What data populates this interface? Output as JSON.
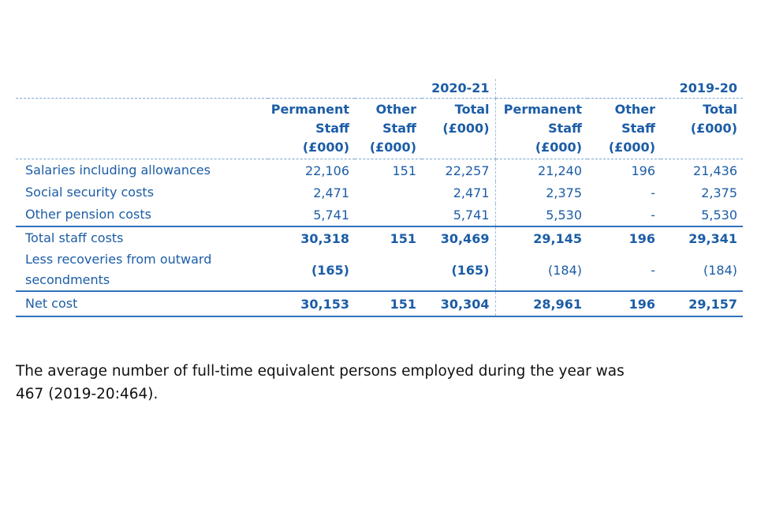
{
  "table": {
    "groups": [
      "2020-21",
      "2019-20"
    ],
    "columns": [
      [
        "Permanent",
        "Staff",
        "(£000)"
      ],
      [
        "Other",
        "Staff",
        "(£000)"
      ],
      [
        "Total",
        "(£000)"
      ],
      [
        "Permanent",
        "Staff",
        "(£000)"
      ],
      [
        "Other",
        "Staff",
        "(£000)"
      ],
      [
        "Total",
        "(£000)"
      ]
    ],
    "rows": [
      [
        "Salaries including allowances",
        "22,106",
        "151",
        "22,257",
        "21,240",
        "196",
        "21,436"
      ],
      [
        "Social security costs",
        "2,471",
        null,
        "2,471",
        "2,375",
        "-",
        "2,375"
      ],
      [
        "Other pension costs",
        "5,741",
        null,
        "5,741",
        "5,530",
        "-",
        "5,530"
      ],
      [
        "Total staff costs",
        "30,318",
        "151",
        "30,469",
        "29,145",
        "196",
        "29,341"
      ],
      [
        "Less recoveries from outward secondments",
        "(165)",
        null,
        "(165)",
        "(184)",
        "-",
        "(184)"
      ],
      [
        "Net cost",
        "30,153",
        "151",
        "30,304",
        "28,961",
        "196",
        "29,157"
      ]
    ]
  },
  "note": "The average number of full-time equivalent persons employed during the year was 467 (2019-20:464)."
}
